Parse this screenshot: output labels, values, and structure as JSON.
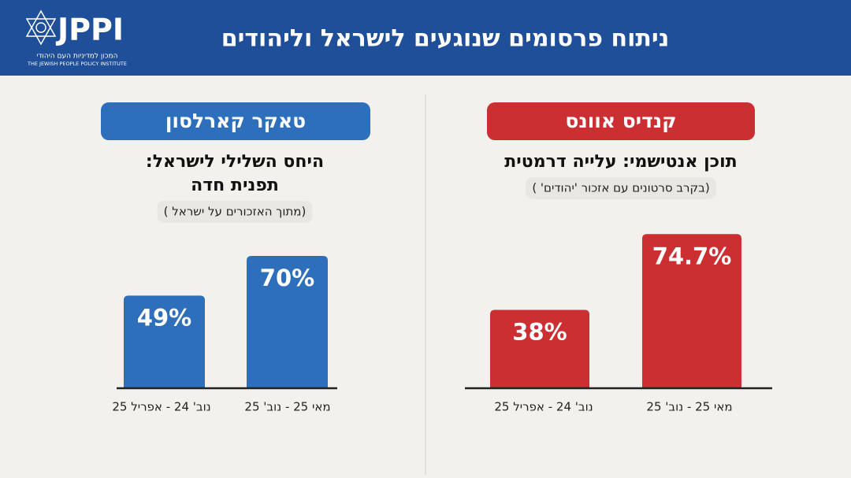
{
  "header": {
    "title": "ניתוח  פרסומים שנוגעים לישראל וליהודים",
    "logo": "JPPI",
    "logo_he": "המכון למדיניות העם היהודי",
    "logo_en": "THE JEWISH PEOPLE POLICY INSTITUTE"
  },
  "chart_data": [
    {
      "type": "bar",
      "title": "טאקר קארלסון",
      "subtitle_lines": [
        "היחס השלילי לישראל:",
        "תפנית חדה"
      ],
      "note": "(מתוך האזכורים על ישראל )",
      "categories": [
        "נוב' 24 - אפריל 25",
        "מאי 25 - נוב' 25"
      ],
      "values": [
        49,
        70
      ],
      "value_labels": [
        "49%",
        "70%"
      ],
      "color": "#2e6fbc"
    },
    {
      "type": "bar",
      "title": "קנדיס אוונס",
      "subtitle_lines": [
        "תוכן אנטישמי: עלייה דרמטית"
      ],
      "note": "(בקרב סרטונים עם אזכור 'יהודים' )",
      "categories": [
        "נוב' 24 - אפריל 25",
        "מאי 25 - נוב' 25"
      ],
      "values": [
        38,
        74.7
      ],
      "value_labels": [
        "38%",
        "74.7%"
      ],
      "color": "#cc2f32"
    }
  ]
}
